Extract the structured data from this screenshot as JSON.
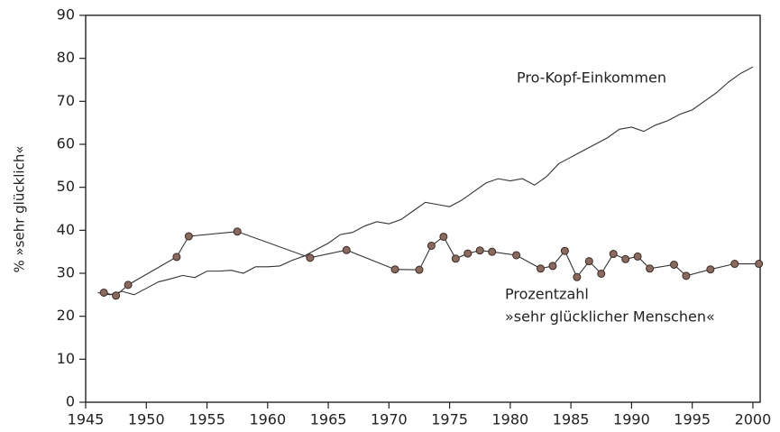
{
  "chart_data": {
    "type": "line",
    "ylabel": "% »sehr glücklich«",
    "annotations": [
      "Pro-Kopf-Einkommen",
      "Prozentzahl",
      "»sehr glücklicher Menschen«"
    ],
    "xlim": [
      1945,
      2000.6
    ],
    "xticks": [
      1945,
      1950,
      1955,
      1960,
      1965,
      1970,
      1975,
      1980,
      1985,
      1990,
      1995,
      2000
    ],
    "ylim": [
      0,
      90
    ],
    "yticks": [
      0,
      10,
      20,
      30,
      40,
      50,
      60,
      70,
      80,
      90
    ],
    "series": [
      {
        "color": "#333333",
        "markers": false,
        "x": [
          1946,
          1947,
          1948,
          1949,
          1950,
          1951,
          1952,
          1953,
          1954,
          1955,
          1956,
          1957,
          1958,
          1959,
          1960,
          1961,
          1962,
          1963,
          1964,
          1965,
          1966,
          1967,
          1968,
          1969,
          1970,
          1971,
          1972,
          1973,
          1974,
          1975,
          1976,
          1977,
          1978,
          1979,
          1980,
          1981,
          1982,
          1983,
          1984,
          1985,
          1986,
          1987,
          1988,
          1989,
          1990,
          1991,
          1992,
          1993,
          1994,
          1995,
          1996,
          1997,
          1998,
          1999,
          2000
        ],
        "values": [
          25.5,
          25,
          25.8,
          25,
          26.5,
          28,
          28.7,
          29.5,
          29,
          30.5,
          30.5,
          30.7,
          30,
          31.5,
          31.5,
          31.7,
          33,
          34,
          35.5,
          37,
          39,
          39.5,
          41,
          42,
          41.5,
          42.5,
          44.5,
          46.5,
          46,
          45.5,
          47,
          49,
          51,
          52,
          51.5,
          52,
          50.5,
          52.5,
          55.5,
          57,
          58.5,
          60,
          61.5,
          63.5,
          64,
          63,
          64.5,
          65.5,
          67,
          68,
          70,
          72,
          74.5,
          76.5,
          78
        ]
      },
      {
        "color": "#8a6a5e",
        "markers": true,
        "x": [
          1946.5,
          1947.5,
          1948.5,
          1952.5,
          1953.5,
          1957.5,
          1963.5,
          1966.5,
          1970.5,
          1972.5,
          1973.5,
          1974.5,
          1975.5,
          1976.5,
          1977.5,
          1978.5,
          1980.5,
          1982.5,
          1983.5,
          1984.5,
          1985.5,
          1986.5,
          1987.5,
          1988.5,
          1989.5,
          1990.5,
          1991.5,
          1993.5,
          1994.5,
          1996.5,
          1998.5,
          2000.5
        ],
        "values": [
          25.5,
          24.8,
          27.3,
          33.8,
          38.6,
          39.7,
          33.6,
          35.4,
          30.9,
          30.8,
          36.4,
          38.5,
          33.4,
          34.6,
          35.3,
          35,
          34.2,
          31.1,
          31.7,
          35.2,
          29.1,
          32.8,
          29.9,
          34.5,
          33.3,
          33.9,
          31.1,
          32,
          29.4,
          30.9,
          32.2,
          32.2
        ]
      }
    ]
  }
}
